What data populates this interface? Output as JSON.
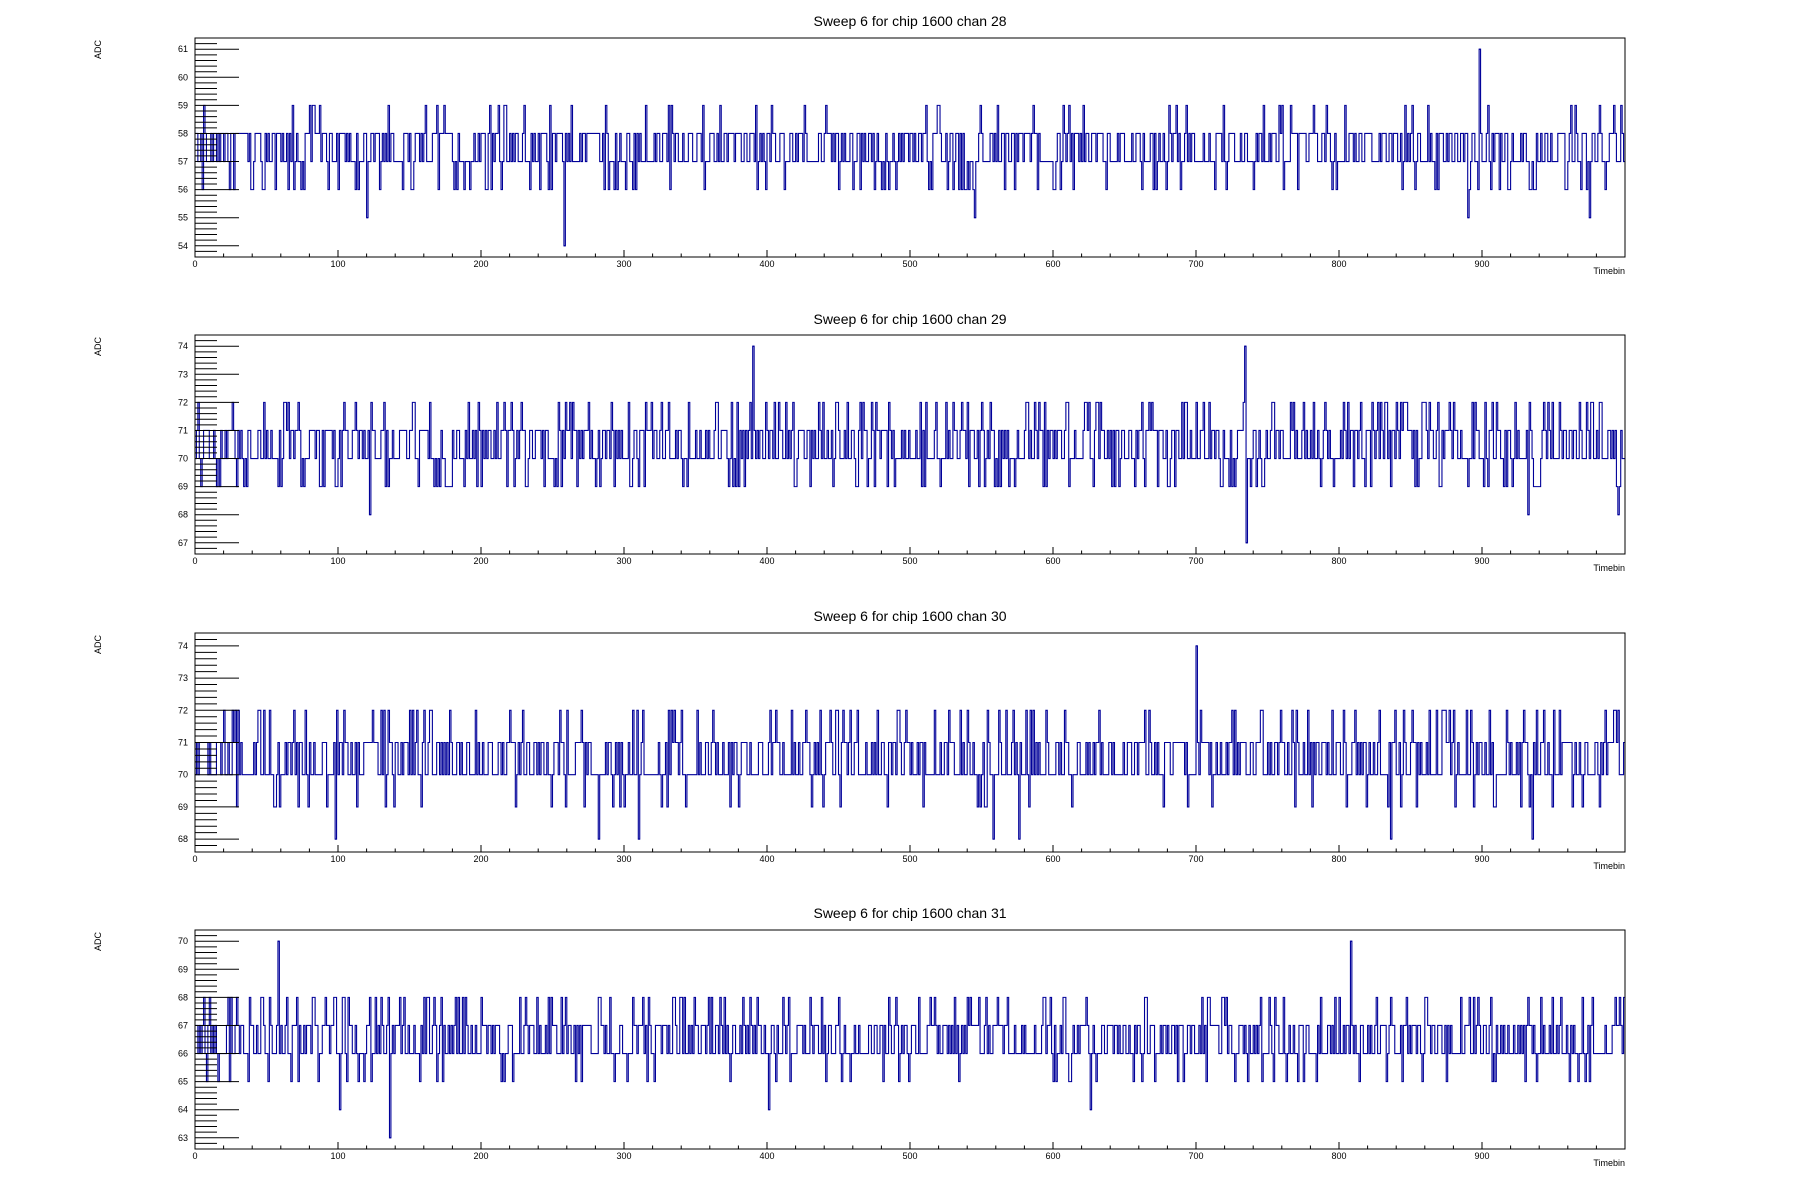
{
  "chart_data": [
    {
      "type": "line",
      "title": "Sweep 6 for chip 1600 chan 28",
      "xlabel": "Timebin",
      "ylabel": "ADC",
      "xlim": [
        0,
        1000
      ],
      "ylim": [
        53.6,
        61.4
      ],
      "xticks": [
        0,
        100,
        200,
        300,
        400,
        500,
        600,
        700,
        800,
        900
      ],
      "yticks": [
        54,
        55,
        56,
        57,
        58,
        59,
        60,
        61
      ],
      "baseline": 57,
      "noise_levels": [
        56,
        57,
        57,
        58,
        58,
        57,
        56,
        58,
        59,
        57,
        58
      ],
      "spikes": [
        {
          "x": 258,
          "y": 54
        },
        {
          "x": 898,
          "y": 61
        },
        {
          "x": 890,
          "y": 55
        },
        {
          "x": 975,
          "y": 55
        },
        {
          "x": 120,
          "y": 55
        },
        {
          "x": 545,
          "y": 55
        }
      ],
      "grid": false
    },
    {
      "type": "line",
      "title": "Sweep 6 for chip 1600 chan 29",
      "xlabel": "Timebin",
      "ylabel": "ADC",
      "xlim": [
        0,
        1000
      ],
      "ylim": [
        66.6,
        74.4
      ],
      "xticks": [
        0,
        100,
        200,
        300,
        400,
        500,
        600,
        700,
        800,
        900
      ],
      "yticks": [
        67,
        68,
        69,
        70,
        71,
        72,
        73,
        74
      ],
      "baseline": 70,
      "noise_levels": [
        69,
        70,
        70,
        71,
        71,
        70,
        69,
        71,
        72,
        70,
        72
      ],
      "spikes": [
        {
          "x": 390,
          "y": 74
        },
        {
          "x": 734,
          "y": 74
        },
        {
          "x": 735,
          "y": 67
        },
        {
          "x": 122,
          "y": 68
        },
        {
          "x": 932,
          "y": 68
        },
        {
          "x": 995,
          "y": 68
        }
      ],
      "grid": false
    },
    {
      "type": "line",
      "title": "Sweep 6 for chip 1600 chan 30",
      "xlabel": "Timebin",
      "ylabel": "ADC",
      "xlim": [
        0,
        1000
      ],
      "ylim": [
        67.6,
        74.4
      ],
      "xticks": [
        0,
        100,
        200,
        300,
        400,
        500,
        600,
        700,
        800,
        900
      ],
      "yticks": [
        68,
        69,
        70,
        71,
        72,
        73,
        74
      ],
      "baseline": 70,
      "noise_levels": [
        69,
        70,
        70,
        71,
        71,
        70,
        70,
        71,
        72,
        70,
        72
      ],
      "spikes": [
        {
          "x": 700,
          "y": 74
        },
        {
          "x": 98,
          "y": 68
        },
        {
          "x": 282,
          "y": 68
        },
        {
          "x": 310,
          "y": 68
        },
        {
          "x": 558,
          "y": 68
        },
        {
          "x": 576,
          "y": 68
        },
        {
          "x": 836,
          "y": 68
        },
        {
          "x": 935,
          "y": 68
        }
      ],
      "grid": false
    },
    {
      "type": "line",
      "title": "Sweep 6 for chip 1600 chan 31",
      "xlabel": "Timebin",
      "ylabel": "ADC",
      "xlim": [
        0,
        1000
      ],
      "ylim": [
        62.6,
        70.4
      ],
      "xticks": [
        0,
        100,
        200,
        300,
        400,
        500,
        600,
        700,
        800,
        900
      ],
      "yticks": [
        63,
        64,
        65,
        66,
        67,
        68,
        69,
        70
      ],
      "baseline": 66,
      "noise_levels": [
        65,
        66,
        66,
        67,
        67,
        66,
        66,
        67,
        68,
        66,
        68
      ],
      "spikes": [
        {
          "x": 136,
          "y": 63
        },
        {
          "x": 58,
          "y": 70
        },
        {
          "x": 808,
          "y": 70
        },
        {
          "x": 101,
          "y": 64
        },
        {
          "x": 401,
          "y": 64
        },
        {
          "x": 626,
          "y": 64
        }
      ],
      "grid": false
    }
  ]
}
